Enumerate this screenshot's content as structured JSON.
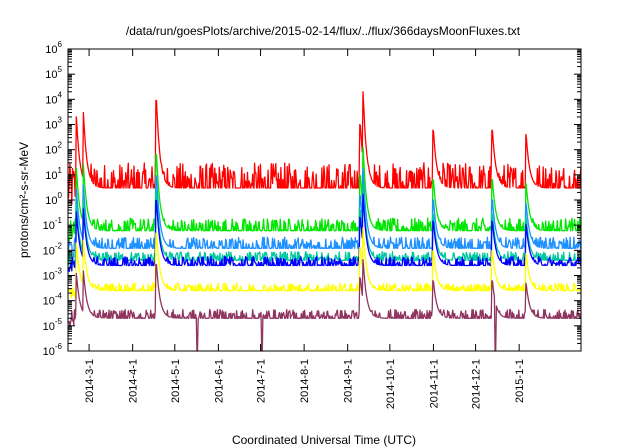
{
  "chart_data": {
    "type": "line",
    "title": "/data/run/goesPlots/archive/2015-02-14/flux/../flux/366daysMoonFluxes.txt",
    "xlabel": "Coordinated Universal Time (UTC)",
    "ylabel": "protons/cm²-s-sr-MeV",
    "yscale": "log",
    "ylim": [
      1e-06,
      1000000.0
    ],
    "xlim": [
      "2014-02-14",
      "2015-02-14"
    ],
    "grid": false,
    "legend": "none",
    "y_ticks": [
      {
        "base": "10",
        "exp": "-6",
        "value": 1e-06
      },
      {
        "base": "10",
        "exp": "-5",
        "value": 1e-05
      },
      {
        "base": "10",
        "exp": "-4",
        "value": 0.0001
      },
      {
        "base": "10",
        "exp": "-3",
        "value": 0.001
      },
      {
        "base": "10",
        "exp": "-2",
        "value": 0.01
      },
      {
        "base": "10",
        "exp": "-1",
        "value": 0.1
      },
      {
        "base": "10",
        "exp": "0",
        "value": 1
      },
      {
        "base": "10",
        "exp": "1",
        "value": 10
      },
      {
        "base": "10",
        "exp": "2",
        "value": 100
      },
      {
        "base": "10",
        "exp": "3",
        "value": 1000
      },
      {
        "base": "10",
        "exp": "4",
        "value": 10000
      },
      {
        "base": "10",
        "exp": "5",
        "value": 100000
      },
      {
        "base": "10",
        "exp": "6",
        "value": 1000000
      }
    ],
    "x_ticks": [
      {
        "label": "2014-3-1",
        "date": "2014-03-01"
      },
      {
        "label": "2014-4-1",
        "date": "2014-04-01"
      },
      {
        "label": "2014-5-1",
        "date": "2014-05-01"
      },
      {
        "label": "2014-6-1",
        "date": "2014-06-01"
      },
      {
        "label": "2014-7-1",
        "date": "2014-07-01"
      },
      {
        "label": "2014-8-1",
        "date": "2014-08-01"
      },
      {
        "label": "2014-9-1",
        "date": "2014-09-01"
      },
      {
        "label": "2014-10-1",
        "date": "2014-10-01"
      },
      {
        "label": "2014-11-1",
        "date": "2014-11-01"
      },
      {
        "label": "2014-12-1",
        "date": "2014-12-01"
      },
      {
        "label": "2015-1-1",
        "date": "2015-01-01"
      }
    ],
    "events": [
      {
        "date": "2014-02-20",
        "peak": 200
      },
      {
        "date": "2014-02-25",
        "peak": 300
      },
      {
        "date": "2014-04-18",
        "peak": 900
      },
      {
        "date": "2014-09-10",
        "peak": 100
      },
      {
        "date": "2014-09-12",
        "peak": 2000
      },
      {
        "date": "2014-11-01",
        "peak": 60
      },
      {
        "date": "2014-12-13",
        "peak": 60
      },
      {
        "date": "2015-01-06",
        "peak": 40
      }
    ],
    "dropouts": [
      {
        "date": "2014-05-17",
        "min": 1e-06
      },
      {
        "date": "2014-07-02",
        "min": 1e-06
      },
      {
        "date": "2014-12-15",
        "min": 1e-06
      }
    ],
    "series": [
      {
        "color": "#ff0000",
        "baseline": 3,
        "spread": 1.0,
        "decay": 1.0
      },
      {
        "color": "#00e600",
        "baseline": 0.06,
        "spread": 0.5,
        "decay": 0.85
      },
      {
        "color": "#1e90ff",
        "baseline": 0.012,
        "spread": 0.45,
        "decay": 0.8
      },
      {
        "color": "#00c8a0",
        "baseline": 0.004,
        "spread": 0.35,
        "decay": 0.75
      },
      {
        "color": "#0000ff",
        "baseline": 0.0025,
        "spread": 0.35,
        "decay": 0.7
      },
      {
        "color": "#ffff00",
        "baseline": 0.00025,
        "spread": 0.3,
        "decay": 0.6
      },
      {
        "color": "#903560",
        "baseline": 2e-05,
        "spread": 0.35,
        "decay": 0.55
      }
    ]
  }
}
